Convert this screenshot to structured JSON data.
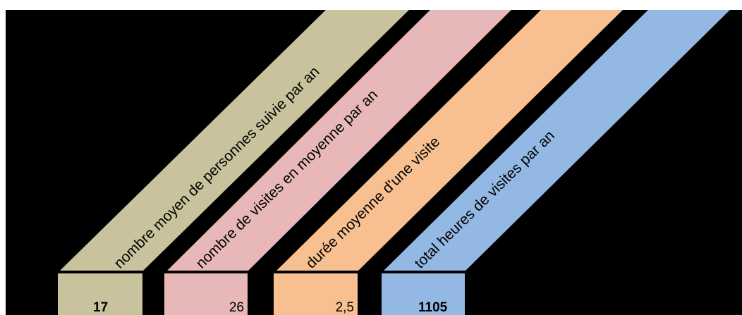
{
  "colors": {
    "background": "#000000",
    "col1": "#C8C39C",
    "col2": "#E8B8B8",
    "col3": "#F8C090",
    "col4": "#94B8E4"
  },
  "columns": [
    {
      "header": "nombre moyen de personnes suivie par an",
      "value": "17"
    },
    {
      "header": "nombre de visites en moyenne par an",
      "value": "26"
    },
    {
      "header": "durée moyenne d'une visite",
      "value": "2,5"
    },
    {
      "header": "total heures de visites par an",
      "value": "1105"
    }
  ]
}
